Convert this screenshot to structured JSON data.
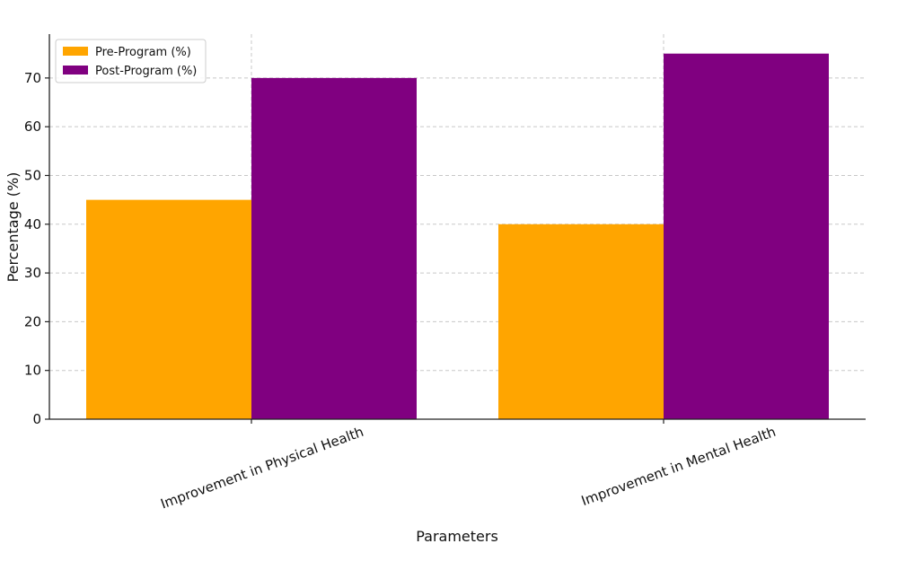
{
  "chart_data": {
    "type": "bar",
    "categories": [
      "Improvement in Physical Health",
      "Improvement in Mental Health"
    ],
    "series": [
      {
        "name": "Pre-Program (%)",
        "values": [
          45,
          40
        ],
        "color": "#FFA500"
      },
      {
        "name": "Post-Program (%)",
        "values": [
          70,
          75
        ],
        "color": "#800080"
      }
    ],
    "title": "",
    "xlabel": "Parameters",
    "ylabel": "Percentage (%)",
    "ylim": [
      0,
      79
    ],
    "yticks": [
      0,
      10,
      20,
      30,
      40,
      50,
      60,
      70
    ],
    "grid": true,
    "legend_position": "top-left"
  }
}
